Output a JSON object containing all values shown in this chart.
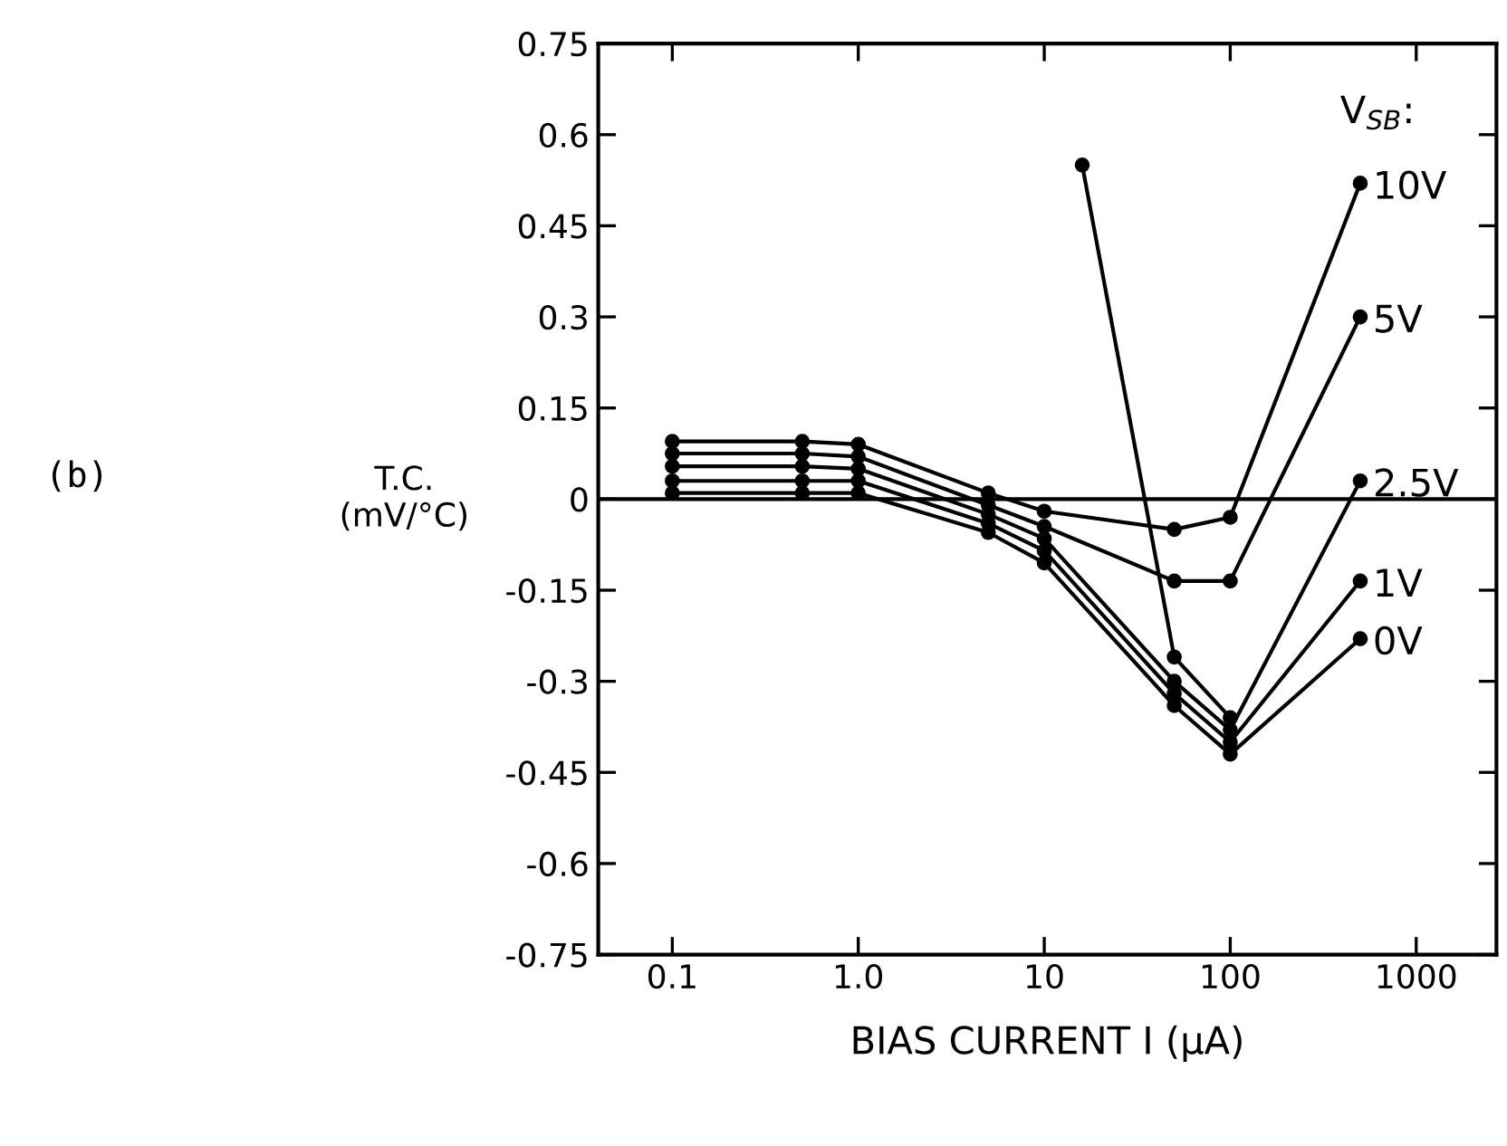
{
  "chart_data": {
    "type": "line",
    "xlabel": "BIAS CURRENT I (μA)",
    "ylabel": "T.C.\n(mV/°C)",
    "legend_title": "V$_{SB}$:",
    "annotations": [
      "(b)"
    ],
    "log": "x",
    "xlim": [
      0.04,
      2700
    ],
    "xticks": [
      {
        "value": 0.1,
        "label": "0.1"
      },
      {
        "value": 1,
        "label": "1.0"
      },
      10,
      100,
      1000
    ],
    "ylim": [
      -0.75,
      0.75
    ],
    "yticks": [
      -0.75,
      -0.6,
      -0.45,
      -0.3,
      -0.15,
      0,
      0.15,
      0.3,
      0.45,
      0.6,
      0.75
    ],
    "grid": false,
    "legend": "right",
    "marker": "circle",
    "line_style": "solid",
    "ref_lines": [
      {
        "axis": "y",
        "value": 0,
        "color": "#000000"
      }
    ],
    "series": [
      {
        "name": "10V",
        "color": "#000000",
        "x": [
          0.1,
          0.5,
          1,
          5,
          10,
          50,
          100,
          500
        ],
        "values": [
          0.095,
          0.095,
          0.09,
          0.01,
          -0.02,
          -0.05,
          -0.03,
          0.52
        ]
      },
      {
        "name": "5V",
        "color": "#000000",
        "x": [
          0.1,
          0.5,
          1,
          5,
          10,
          50,
          100,
          500
        ],
        "values": [
          0.075,
          0.075,
          0.07,
          -0.01,
          -0.045,
          -0.135,
          -0.135,
          0.3
        ]
      },
      {
        "name": "2.5V",
        "color": "#000000",
        "x": [
          0.1,
          0.5,
          1,
          5,
          10,
          50,
          100,
          500
        ],
        "values": [
          0.054,
          0.054,
          0.05,
          -0.025,
          -0.065,
          -0.3,
          -0.38,
          0.03
        ]
      },
      {
        "name": "1V",
        "color": "#000000",
        "x": [
          0.1,
          0.5,
          1,
          5,
          10,
          50,
          100,
          500
        ],
        "values": [
          0.03,
          0.03,
          0.03,
          -0.04,
          -0.085,
          -0.32,
          -0.4,
          -0.135
        ]
      },
      {
        "name": "0V",
        "color": "#000000",
        "x": [
          0.1,
          0.5,
          1,
          5,
          10,
          50,
          100,
          500
        ],
        "values": [
          0.01,
          0.01,
          0.01,
          -0.055,
          -0.105,
          -0.34,
          -0.42,
          -0.23
        ]
      },
      {
        "color": "#000000",
        "x": [
          16,
          50,
          100
        ],
        "values": [
          0.55,
          -0.26,
          -0.36
        ]
      }
    ]
  }
}
